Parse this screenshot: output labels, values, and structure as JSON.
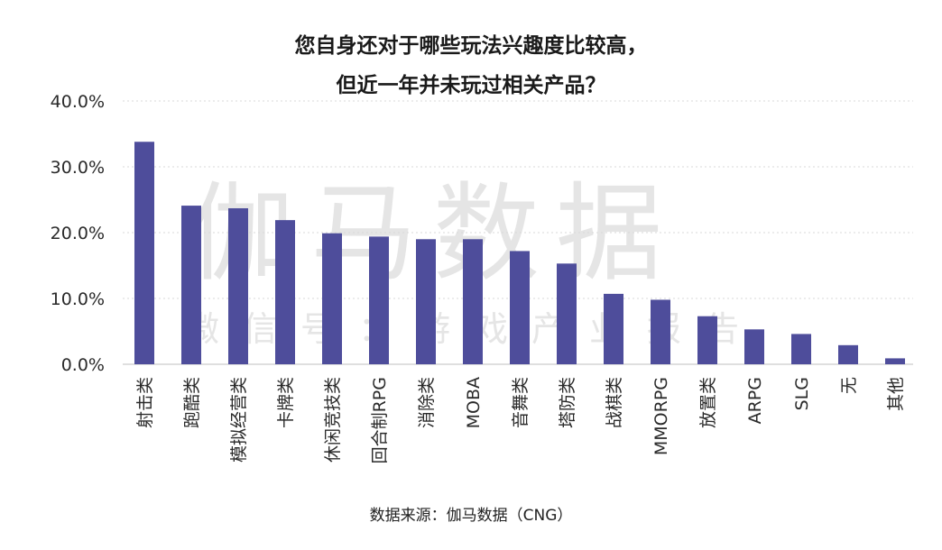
{
  "chart_data": {
    "type": "bar",
    "title_lines": [
      "您自身还对于哪些玩法兴趣度比较高，",
      "但近一年并未玩过相关产品？"
    ],
    "categories": [
      "射击类",
      "跑酷类",
      "模拟经营类",
      "卡牌类",
      "休闲竞技类",
      "回合制RPG",
      "消除类",
      "MOBA",
      "音舞类",
      "塔防类",
      "战棋类",
      "MMORPG",
      "放置类",
      "ARPG",
      "SLG",
      "无",
      "其他"
    ],
    "values": [
      33.8,
      24.1,
      23.7,
      21.9,
      19.9,
      19.4,
      19.0,
      19.0,
      17.2,
      15.3,
      10.7,
      9.8,
      7.3,
      5.3,
      4.6,
      2.9,
      0.9
    ],
    "yticks": [
      "0.0%",
      "10.0%",
      "20.0%",
      "30.0%",
      "40.0%"
    ],
    "ylim": [
      0,
      40
    ],
    "grid": true,
    "bar_color": "#4e4d9b",
    "source": "数据来源：伽马数据（CNG）"
  },
  "watermark": {
    "main": "伽马数据",
    "sub": "微信号：游戏产业报告"
  }
}
